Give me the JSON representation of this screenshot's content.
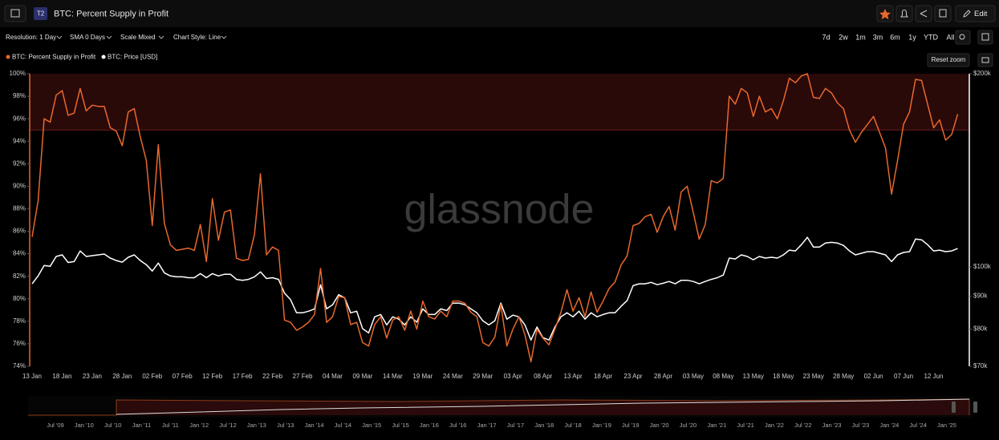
{
  "header": {
    "badge": "T2",
    "title": "BTC: Percent Supply in Profit",
    "edit": "Edit"
  },
  "toolbar": {
    "options": [
      "Resolution: 1 Day",
      "SMA 0 Days",
      "Scale Mixed",
      "Chart Style: Line"
    ],
    "ranges": [
      "7d",
      "2w",
      "1m",
      "3m",
      "6m",
      "1y",
      "YTD",
      "All"
    ],
    "reset_zoom": "Reset zoom"
  },
  "watermark": "glassnode",
  "chart_data": {
    "type": "line",
    "categories": [
      "13 Jan",
      null,
      null,
      null,
      null,
      "18 Jan",
      null,
      null,
      null,
      null,
      "23 Jan",
      null,
      null,
      null,
      null,
      "28 Jan",
      null,
      null,
      null,
      null,
      "02 Feb",
      null,
      null,
      null,
      null,
      "07 Feb",
      null,
      null,
      null,
      null,
      "12 Feb",
      null,
      null,
      null,
      null,
      "17 Feb",
      null,
      null,
      null,
      null,
      "22 Feb",
      null,
      null,
      null,
      null,
      "27 Feb",
      null,
      null,
      null,
      null,
      "04 Mar",
      null,
      null,
      null,
      null,
      "09 Mar",
      null,
      null,
      null,
      null,
      "14 Mar",
      null,
      null,
      null,
      null,
      "19 Mar",
      null,
      null,
      null,
      null,
      "24 Mar",
      null,
      null,
      null,
      null,
      "29 Mar",
      null,
      null,
      null,
      null,
      "03 Apr",
      null,
      null,
      null,
      null,
      "08 Apr",
      null,
      null,
      null,
      null,
      "13 Apr",
      null,
      null,
      null,
      null,
      "18 Apr",
      null,
      null,
      null,
      null,
      "23 Apr",
      null,
      null,
      null,
      null,
      "28 Apr",
      null,
      null,
      null,
      null,
      "03 May",
      null,
      null,
      null,
      null,
      "08 May",
      null,
      null,
      null,
      null,
      "13 May",
      null,
      null,
      null,
      null,
      "18 May",
      null,
      null,
      null,
      null,
      "23 May",
      null,
      null,
      null,
      null,
      "28 May",
      null,
      null,
      null,
      null,
      "02 Jun",
      null,
      null,
      null,
      null,
      "07 Jun",
      null,
      null,
      null,
      null,
      "12 Jun",
      null,
      null,
      null,
      null
    ],
    "series": [
      {
        "name": "BTC: Percent Supply in Profit",
        "color": "#e8682c",
        "values": [
          85.5,
          88.7,
          96.0,
          95.7,
          98.1,
          98.5,
          96.3,
          96.5,
          98.7,
          96.7,
          97.2,
          97.1,
          97.1,
          95.2,
          94.9,
          93.6,
          96.6,
          96.9,
          94.4,
          92.3,
          86.5,
          93.7,
          86.7,
          84.8,
          84.3,
          84.4,
          84.5,
          84.3,
          86.6,
          83.3,
          88.9,
          85.2,
          87.7,
          87.9,
          83.6,
          83.4,
          83.5,
          85.7,
          91.1,
          83.9,
          84.6,
          84.3,
          78.1,
          77.9,
          77.2,
          77.5,
          77.9,
          78.6,
          82.7,
          77.9,
          78.4,
          80.2,
          80.1,
          77.7,
          77.9,
          76.1,
          75.8,
          77.7,
          78.4,
          76.5,
          78.1,
          78.4,
          77.2,
          78.9,
          77.3,
          79.8,
          78.4,
          78.2,
          78.9,
          78.4,
          79.8,
          79.8,
          79.6,
          78.8,
          78.4,
          76.1,
          75.8,
          76.6,
          79.5,
          75.8,
          77.3,
          78.4,
          76.8,
          74.4,
          77.3,
          76.5,
          75.9,
          77.3,
          78.8,
          80.8,
          78.9,
          80.1,
          78.4,
          80.6,
          78.8,
          79.8,
          80.9,
          81.5,
          83.0,
          83.8,
          86.5,
          86.7,
          87.3,
          87.5,
          85.9,
          87.3,
          88.2,
          86.1,
          89.5,
          90.0,
          87.7,
          85.3,
          86.6,
          90.5,
          90.3,
          90.7,
          98.0,
          97.3,
          98.7,
          98.3,
          96.2,
          98.0,
          96.6,
          96.9,
          96.0,
          97.6,
          99.6,
          99.2,
          99.8,
          100,
          97.9,
          97.8,
          98.7,
          98.3,
          97.4,
          96.9,
          95.0,
          93.9,
          94.8,
          95.5,
          96.2,
          94.8,
          93.4,
          89.3,
          92.3,
          95.5,
          96.6,
          99.5,
          99.4,
          97.3,
          95.2,
          95.9,
          94.1,
          94.6,
          96.4
        ]
      },
      {
        "name": "BTC: Price [USD]",
        "color": "#ffffff",
        "axis": "y2",
        "values": [
          94100,
          96800,
          100500,
          100200,
          103800,
          104400,
          101600,
          101900,
          105900,
          103800,
          104100,
          104400,
          104700,
          103200,
          102300,
          101700,
          103500,
          104400,
          102300,
          100800,
          98500,
          101400,
          97900,
          96800,
          96500,
          96500,
          96200,
          96200,
          97600,
          96200,
          97600,
          96800,
          97400,
          97400,
          95600,
          95300,
          95600,
          96500,
          98200,
          95900,
          96200,
          95600,
          91000,
          88900,
          84800,
          84800,
          85300,
          86000,
          93800,
          86000,
          87300,
          90500,
          89500,
          84800,
          85300,
          80100,
          78900,
          83600,
          84300,
          81200,
          83600,
          82900,
          81200,
          83600,
          82000,
          86000,
          84300,
          84300,
          86000,
          85500,
          87800,
          87800,
          87300,
          86000,
          84800,
          82400,
          81200,
          82400,
          87800,
          82900,
          84100,
          83600,
          81200,
          76900,
          80600,
          77600,
          76900,
          80600,
          83600,
          84800,
          83600,
          85300,
          82900,
          84800,
          83600,
          84300,
          84800,
          84800,
          86800,
          88600,
          93500,
          94100,
          94100,
          94600,
          93800,
          94300,
          94900,
          94100,
          95300,
          95300,
          94900,
          94100,
          94900,
          95600,
          96200,
          97100,
          103200,
          102900,
          104400,
          103800,
          102600,
          103800,
          103200,
          103500,
          103200,
          104400,
          106200,
          105900,
          108300,
          111200,
          107400,
          107400,
          108900,
          109200,
          108900,
          108000,
          105900,
          104400,
          105000,
          105600,
          105600,
          105000,
          104400,
          101900,
          104400,
          105300,
          105600,
          110500,
          110200,
          108300,
          105900,
          106200,
          105600,
          105900,
          106800
        ]
      }
    ],
    "ylim": [
      74,
      100
    ],
    "yticks": [
      {
        "value": 74,
        "label": "74%"
      },
      {
        "value": 76,
        "label": "76%"
      },
      {
        "value": 78,
        "label": "78%"
      },
      {
        "value": 80,
        "label": "80%"
      },
      {
        "value": 82,
        "label": "82%"
      },
      {
        "value": 84,
        "label": "84%"
      },
      {
        "value": 86,
        "label": "86%"
      },
      {
        "value": 88,
        "label": "88%"
      },
      {
        "value": 90,
        "label": "90%"
      },
      {
        "value": 92,
        "label": "92%"
      },
      {
        "value": 94,
        "label": "94%"
      },
      {
        "value": 96,
        "label": "96%"
      },
      {
        "value": 98,
        "label": "98%"
      },
      {
        "value": 100,
        "label": "100%"
      }
    ],
    "y2lim": [
      70000,
      200000
    ],
    "y2scale": "log",
    "y2ticks": [
      {
        "value": 70000,
        "label": "$70k"
      },
      {
        "value": 80000,
        "label": "$80k"
      },
      {
        "value": 90000,
        "label": "$90k"
      },
      {
        "value": 100000,
        "label": "$100k"
      },
      {
        "value": 200000,
        "label": "$200k"
      }
    ],
    "highlight_band": [
      95,
      100
    ],
    "band_color": "#2a0909",
    "grid": false
  },
  "navigator": {
    "labels": [
      "Jul '09",
      "Jan '10",
      "Jul '10",
      "Jan '11",
      "Jul '11",
      "Jan '12",
      "Jul '12",
      "Jan '13",
      "Jul '13",
      "Jan '14",
      "Jul '14",
      "Jan '15",
      "Jul '15",
      "Jan '16",
      "Jul '16",
      "Jan '17",
      "Jul '17",
      "Jan '18",
      "Jul '18",
      "Jan '19",
      "Jul '19",
      "Jan '20",
      "Jul '20",
      "Jan '21",
      "Jul '21",
      "Jan '22",
      "Jul '22",
      "Jan '23",
      "Jul '23",
      "Jan '24",
      "Jul '24",
      "Jan '25"
    ]
  }
}
